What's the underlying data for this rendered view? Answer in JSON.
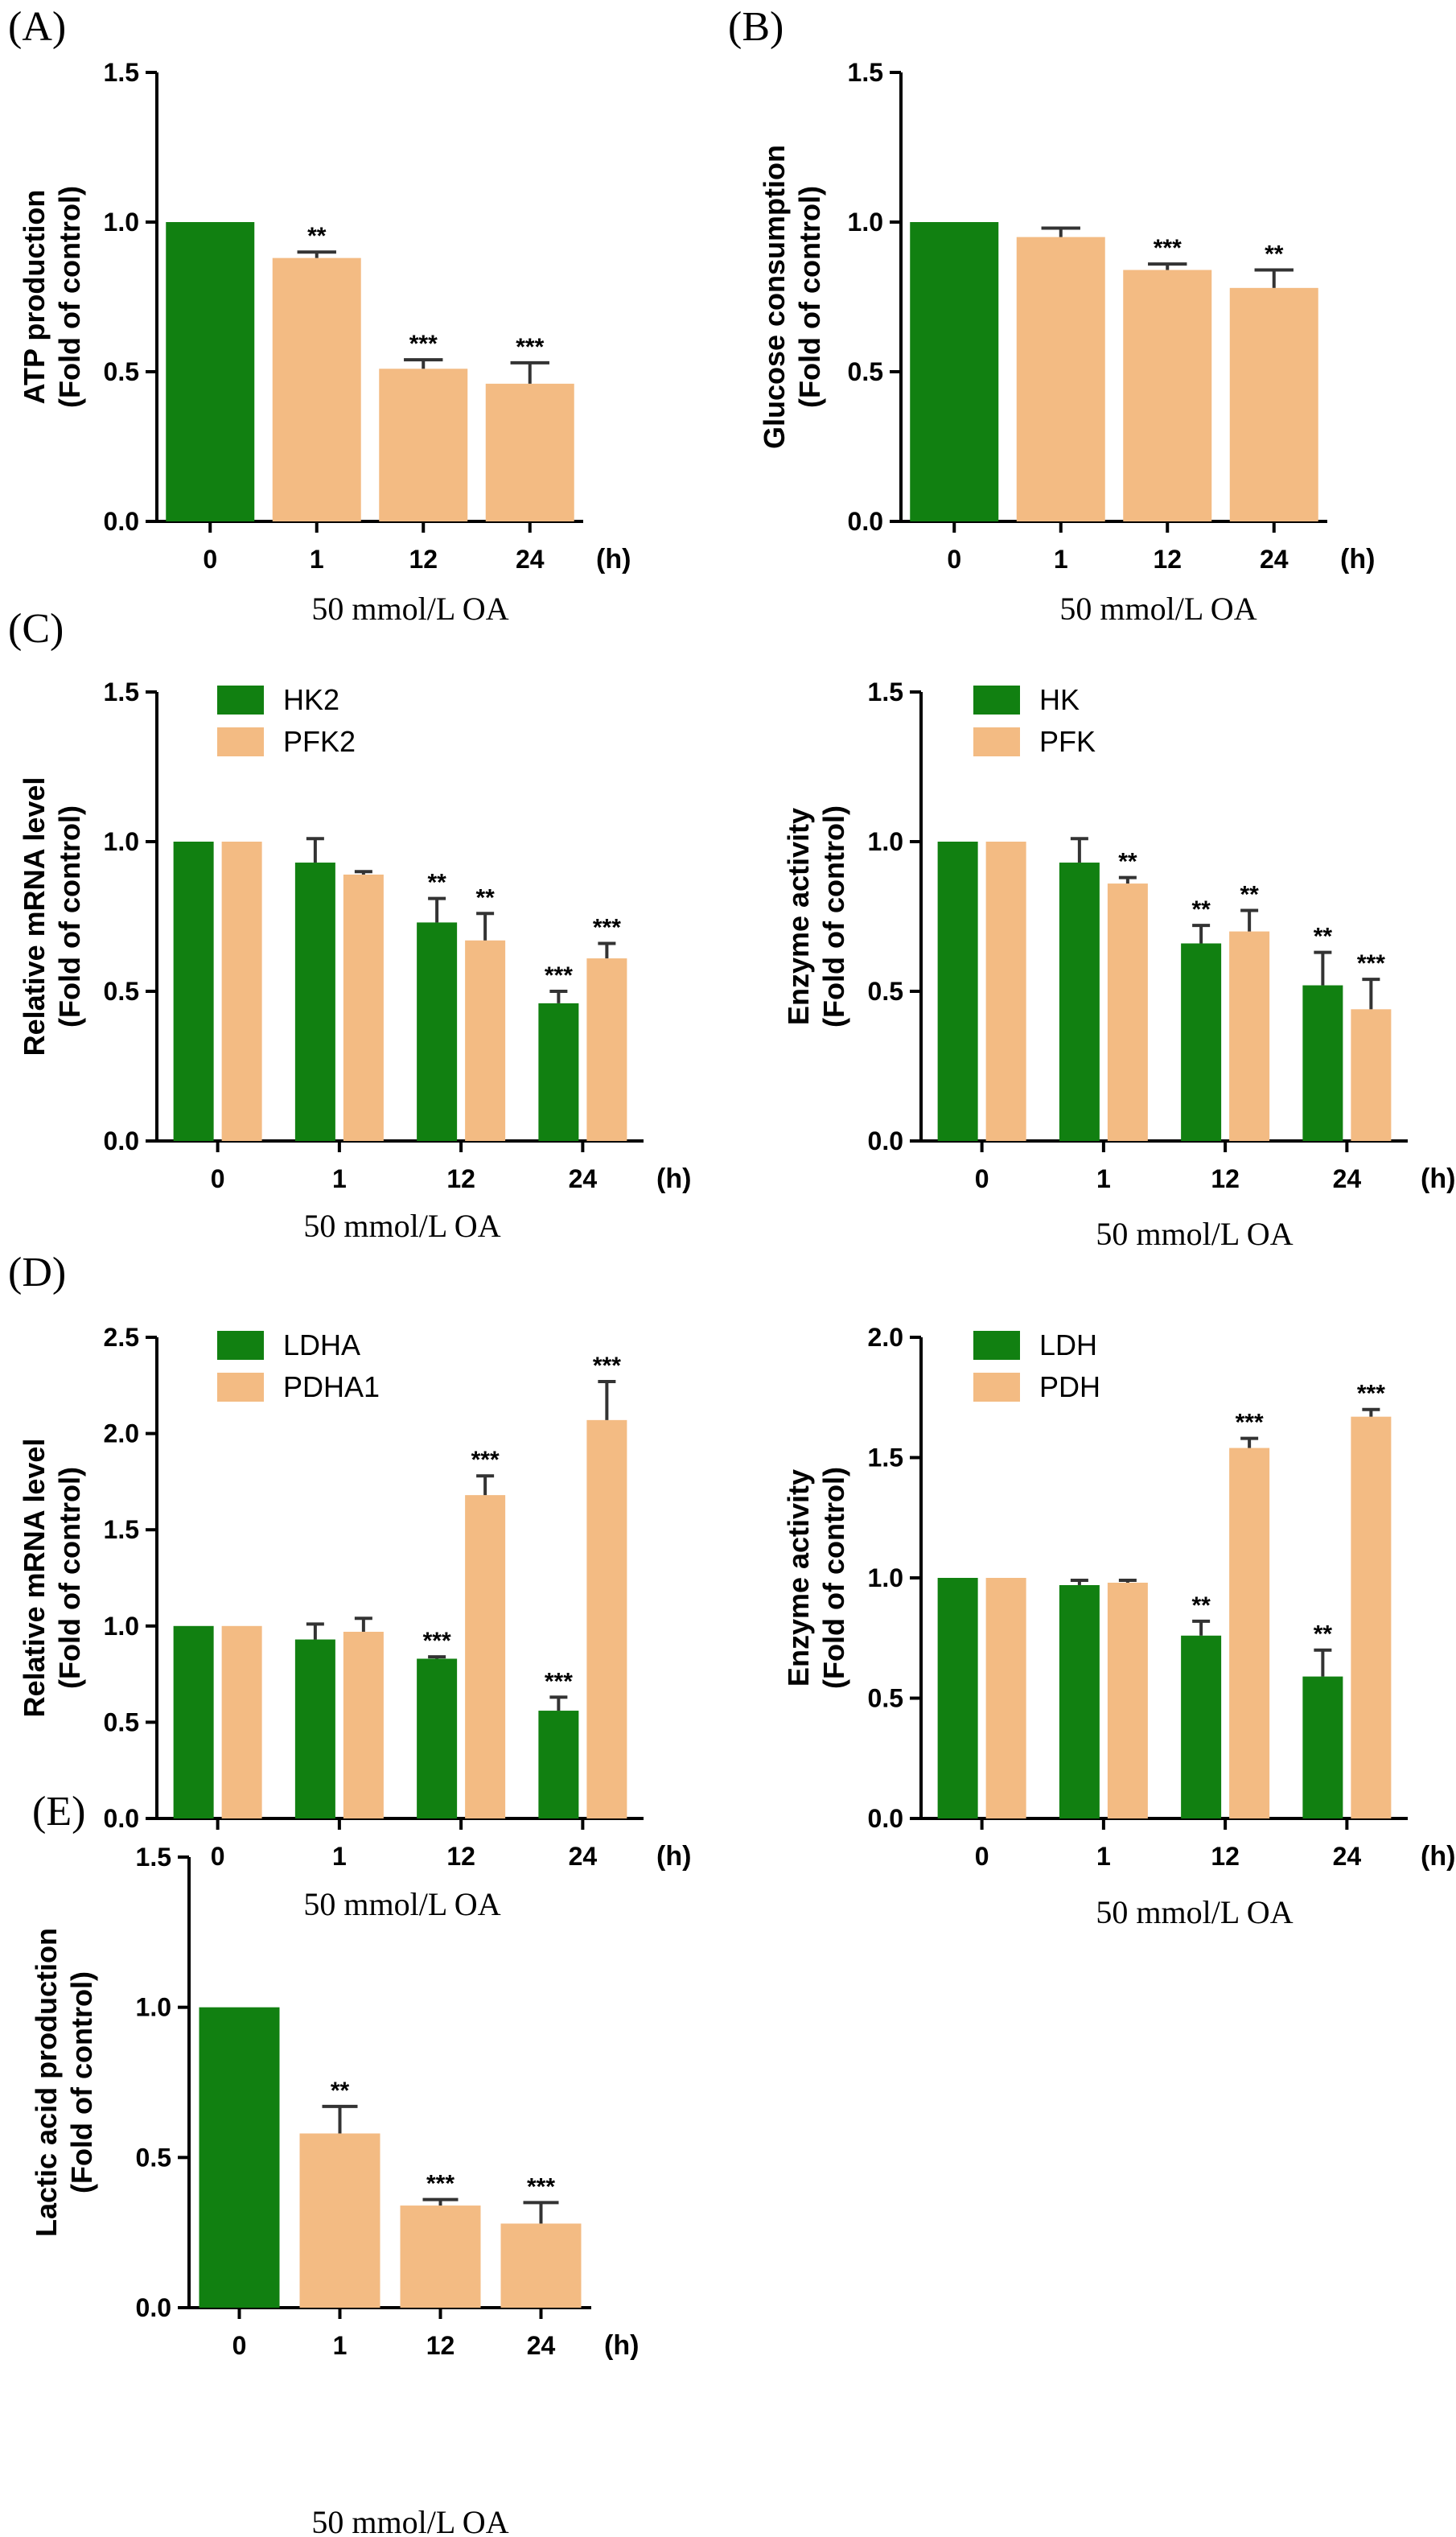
{
  "colors": {
    "green": "#118011",
    "tan": "#F3BB83",
    "axis": "#000000"
  },
  "chart_data": [
    {
      "id": "A",
      "panel_label": "(A)",
      "type": "bar",
      "categories": [
        "0",
        "1",
        "12",
        "24"
      ],
      "unit_label": "(h)",
      "xlabel": "50 mmol/L OA",
      "ylabel": [
        "ATP production",
        "(Fold of control)"
      ],
      "ylim": [
        0,
        1.5
      ],
      "yticks": [
        "0.0",
        "0.5",
        "1.0",
        "1.5"
      ],
      "legend": [],
      "series": [
        {
          "values": [
            1.0,
            0.88,
            0.51,
            0.46
          ],
          "errors": [
            0,
            0.02,
            0.03,
            0.07
          ],
          "sig": [
            "",
            "**",
            "***",
            "***"
          ],
          "bar_colors": [
            "green",
            "tan",
            "tan",
            "tan"
          ]
        }
      ]
    },
    {
      "id": "B",
      "panel_label": "(B)",
      "type": "bar",
      "categories": [
        "0",
        "1",
        "12",
        "24"
      ],
      "unit_label": "(h)",
      "xlabel": "50 mmol/L OA",
      "ylabel": [
        "Glucose consumption",
        "(Fold of control)"
      ],
      "ylim": [
        0,
        1.5
      ],
      "yticks": [
        "0.0",
        "0.5",
        "1.0",
        "1.5"
      ],
      "legend": [],
      "series": [
        {
          "values": [
            1.0,
            0.95,
            0.84,
            0.78
          ],
          "errors": [
            0,
            0.03,
            0.02,
            0.06
          ],
          "sig": [
            "",
            "",
            "***",
            "**"
          ],
          "bar_colors": [
            "green",
            "tan",
            "tan",
            "tan"
          ]
        }
      ]
    },
    {
      "id": "C1",
      "panel_label": "(C)",
      "type": "bar",
      "categories": [
        "0",
        "1",
        "12",
        "24"
      ],
      "unit_label": "(h)",
      "xlabel": "50 mmol/L OA",
      "ylabel": [
        "Relative mRNA level",
        "(Fold of control)"
      ],
      "ylim": [
        0,
        1.5
      ],
      "yticks": [
        "0.0",
        "0.5",
        "1.0",
        "1.5"
      ],
      "legend": [
        "HK2",
        "PFK2"
      ],
      "series": [
        {
          "name": "HK2",
          "color": "green",
          "values": [
            1.0,
            0.93,
            0.73,
            0.46
          ],
          "errors": [
            0,
            0.08,
            0.08,
            0.04
          ],
          "sig": [
            "",
            "",
            "**",
            "***"
          ]
        },
        {
          "name": "PFK2",
          "color": "tan",
          "values": [
            1.0,
            0.89,
            0.67,
            0.61
          ],
          "errors": [
            0,
            0.01,
            0.09,
            0.05
          ],
          "sig": [
            "",
            "",
            "**",
            "***"
          ]
        }
      ]
    },
    {
      "id": "C2",
      "panel_label": "",
      "type": "bar",
      "categories": [
        "0",
        "1",
        "12",
        "24"
      ],
      "unit_label": "(h)",
      "xlabel": "50 mmol/L OA",
      "ylabel": [
        "Enzyme activity",
        "(Fold of control)"
      ],
      "ylim": [
        0,
        1.5
      ],
      "yticks": [
        "0.0",
        "0.5",
        "1.0",
        "1.5"
      ],
      "legend": [
        "HK",
        "PFK"
      ],
      "series": [
        {
          "name": "HK",
          "color": "green",
          "values": [
            1.0,
            0.93,
            0.66,
            0.52
          ],
          "errors": [
            0,
            0.08,
            0.06,
            0.11
          ],
          "sig": [
            "",
            "",
            "**",
            "**"
          ]
        },
        {
          "name": "PFK",
          "color": "tan",
          "values": [
            1.0,
            0.86,
            0.7,
            0.44
          ],
          "errors": [
            0,
            0.02,
            0.07,
            0.1
          ],
          "sig": [
            "",
            "**",
            "**",
            "***"
          ]
        }
      ]
    },
    {
      "id": "D1",
      "panel_label": "(D)",
      "type": "bar",
      "categories": [
        "0",
        "1",
        "12",
        "24"
      ],
      "unit_label": "(h)",
      "xlabel": "50 mmol/L OA",
      "ylabel": [
        "Relative mRNA level",
        "(Fold of control)"
      ],
      "ylim": [
        0,
        2.5
      ],
      "yticks": [
        "0.0",
        "0.5",
        "1.0",
        "1.5",
        "2.0",
        "2.5"
      ],
      "legend": [
        "LDHA",
        "PDHA1"
      ],
      "series": [
        {
          "name": "LDHA",
          "color": "green",
          "values": [
            1.0,
            0.93,
            0.83,
            0.56
          ],
          "errors": [
            0,
            0.08,
            0.01,
            0.07
          ],
          "sig": [
            "",
            "",
            "***",
            "***"
          ]
        },
        {
          "name": "PDHA1",
          "color": "tan",
          "values": [
            1.0,
            0.97,
            1.68,
            2.07
          ],
          "errors": [
            0,
            0.07,
            0.1,
            0.2
          ],
          "sig": [
            "",
            "",
            "***",
            "***"
          ]
        }
      ]
    },
    {
      "id": "D2",
      "panel_label": "",
      "type": "bar",
      "categories": [
        "0",
        "1",
        "12",
        "24"
      ],
      "unit_label": "(h)",
      "xlabel": "50 mmol/L OA",
      "ylabel": [
        "Enzyme activity",
        "(Fold of control)"
      ],
      "ylim": [
        0,
        2.0
      ],
      "yticks": [
        "0.0",
        "0.5",
        "1.0",
        "1.5",
        "2.0"
      ],
      "legend": [
        "LDH",
        "PDH"
      ],
      "series": [
        {
          "name": "LDH",
          "color": "green",
          "values": [
            1.0,
            0.97,
            0.76,
            0.59
          ],
          "errors": [
            0,
            0.02,
            0.06,
            0.11
          ],
          "sig": [
            "",
            "",
            "**",
            "**"
          ]
        },
        {
          "name": "PDH",
          "color": "tan",
          "values": [
            1.0,
            0.98,
            1.54,
            1.67
          ],
          "errors": [
            0,
            0.01,
            0.04,
            0.03
          ],
          "sig": [
            "",
            "",
            "***",
            "***"
          ]
        }
      ]
    },
    {
      "id": "E",
      "panel_label": "(E)",
      "type": "bar",
      "categories": [
        "0",
        "1",
        "12",
        "24"
      ],
      "unit_label": "(h)",
      "xlabel": "50 mmol/L OA",
      "ylabel": [
        "Lactic acid production",
        "(Fold of control)"
      ],
      "ylim": [
        0,
        1.5
      ],
      "yticks": [
        "0.0",
        "0.5",
        "1.0",
        "1.5"
      ],
      "legend": [],
      "series": [
        {
          "values": [
            1.0,
            0.58,
            0.34,
            0.28
          ],
          "errors": [
            0,
            0.09,
            0.02,
            0.07
          ],
          "sig": [
            "",
            "**",
            "***",
            "***"
          ],
          "bar_colors": [
            "green",
            "tan",
            "tan",
            "tan"
          ]
        }
      ]
    }
  ]
}
